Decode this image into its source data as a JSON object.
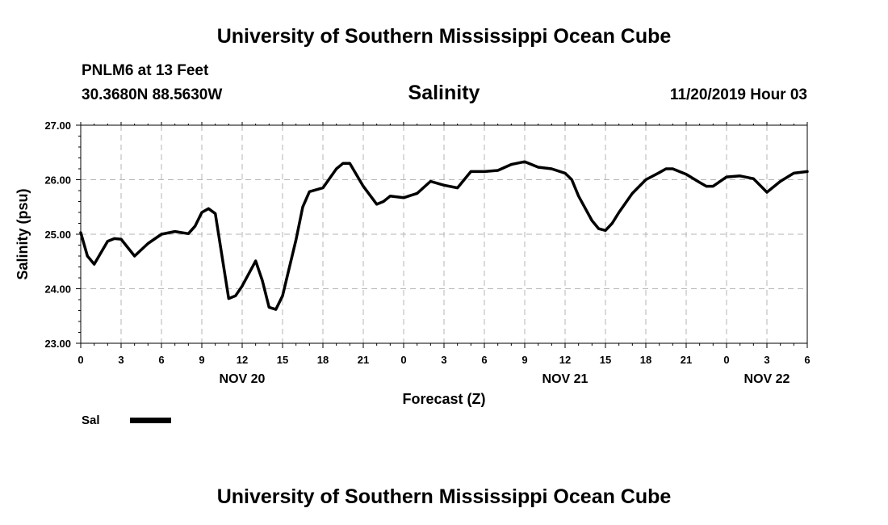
{
  "header": {
    "top_title": "University of Southern Mississippi Ocean Cube",
    "station": "PNLM6 at 13 Feet",
    "coords": "30.3680N 88.5630W",
    "variable": "Salinity",
    "timestamp": "11/20/2019 Hour 03",
    "bottom_title": "University of Southern Mississippi Ocean Cube"
  },
  "legend": {
    "label": "Sal",
    "color": "#000000"
  },
  "chart_data": {
    "type": "line",
    "title": "Salinity",
    "xlabel": "Forecast (Z)",
    "ylabel": "Salinity (psu)",
    "ylim": [
      23.0,
      27.0
    ],
    "yticks": [
      "23.00",
      "24.00",
      "25.00",
      "26.00",
      "27.00"
    ],
    "xlim": [
      0,
      54
    ],
    "xticks": [
      "0",
      "3",
      "6",
      "9",
      "12",
      "15",
      "18",
      "21",
      "0",
      "3",
      "6",
      "9",
      "12",
      "15",
      "18",
      "21",
      "0",
      "3",
      "6"
    ],
    "date_labels": [
      {
        "text": "NOV 20",
        "hour": 12
      },
      {
        "text": "NOV 21",
        "hour": 36
      },
      {
        "text": "NOV 22",
        "hour": 51
      }
    ],
    "grid": true,
    "series": [
      {
        "name": "Sal",
        "color": "#000000",
        "points": [
          [
            0,
            25.03
          ],
          [
            0.5,
            24.6
          ],
          [
            1,
            24.45
          ],
          [
            2,
            24.87
          ],
          [
            2.5,
            24.92
          ],
          [
            3,
            24.91
          ],
          [
            4,
            24.6
          ],
          [
            5,
            24.83
          ],
          [
            6,
            25.0
          ],
          [
            7,
            25.05
          ],
          [
            8,
            25.01
          ],
          [
            8.5,
            25.15
          ],
          [
            9,
            25.4
          ],
          [
            9.5,
            25.47
          ],
          [
            10,
            25.38
          ],
          [
            11,
            23.82
          ],
          [
            11.5,
            23.87
          ],
          [
            12,
            24.05
          ],
          [
            13,
            24.51
          ],
          [
            13.5,
            24.15
          ],
          [
            14,
            23.66
          ],
          [
            14.5,
            23.62
          ],
          [
            15,
            23.87
          ],
          [
            16,
            24.9
          ],
          [
            16.5,
            25.5
          ],
          [
            17,
            25.78
          ],
          [
            18,
            25.85
          ],
          [
            19,
            26.2
          ],
          [
            19.5,
            26.3
          ],
          [
            20,
            26.3
          ],
          [
            21,
            25.88
          ],
          [
            22,
            25.55
          ],
          [
            22.5,
            25.6
          ],
          [
            23,
            25.7
          ],
          [
            24,
            25.67
          ],
          [
            25,
            25.75
          ],
          [
            26,
            25.97
          ],
          [
            27,
            25.9
          ],
          [
            28,
            25.85
          ],
          [
            29,
            26.15
          ],
          [
            30,
            26.15
          ],
          [
            31,
            26.17
          ],
          [
            32,
            26.28
          ],
          [
            33,
            26.33
          ],
          [
            34,
            26.23
          ],
          [
            35,
            26.2
          ],
          [
            36,
            26.12
          ],
          [
            36.5,
            26.0
          ],
          [
            37,
            25.7
          ],
          [
            38,
            25.25
          ],
          [
            38.5,
            25.1
          ],
          [
            39,
            25.07
          ],
          [
            39.5,
            25.2
          ],
          [
            40,
            25.4
          ],
          [
            41,
            25.75
          ],
          [
            42,
            26.0
          ],
          [
            43,
            26.13
          ],
          [
            43.5,
            26.2
          ],
          [
            44,
            26.2
          ],
          [
            45,
            26.1
          ],
          [
            46,
            25.95
          ],
          [
            46.5,
            25.88
          ],
          [
            47,
            25.88
          ],
          [
            48,
            26.05
          ],
          [
            49,
            26.07
          ],
          [
            50,
            26.02
          ],
          [
            51,
            25.77
          ],
          [
            52,
            25.97
          ],
          [
            53,
            26.12
          ],
          [
            54,
            26.15
          ]
        ]
      }
    ]
  }
}
